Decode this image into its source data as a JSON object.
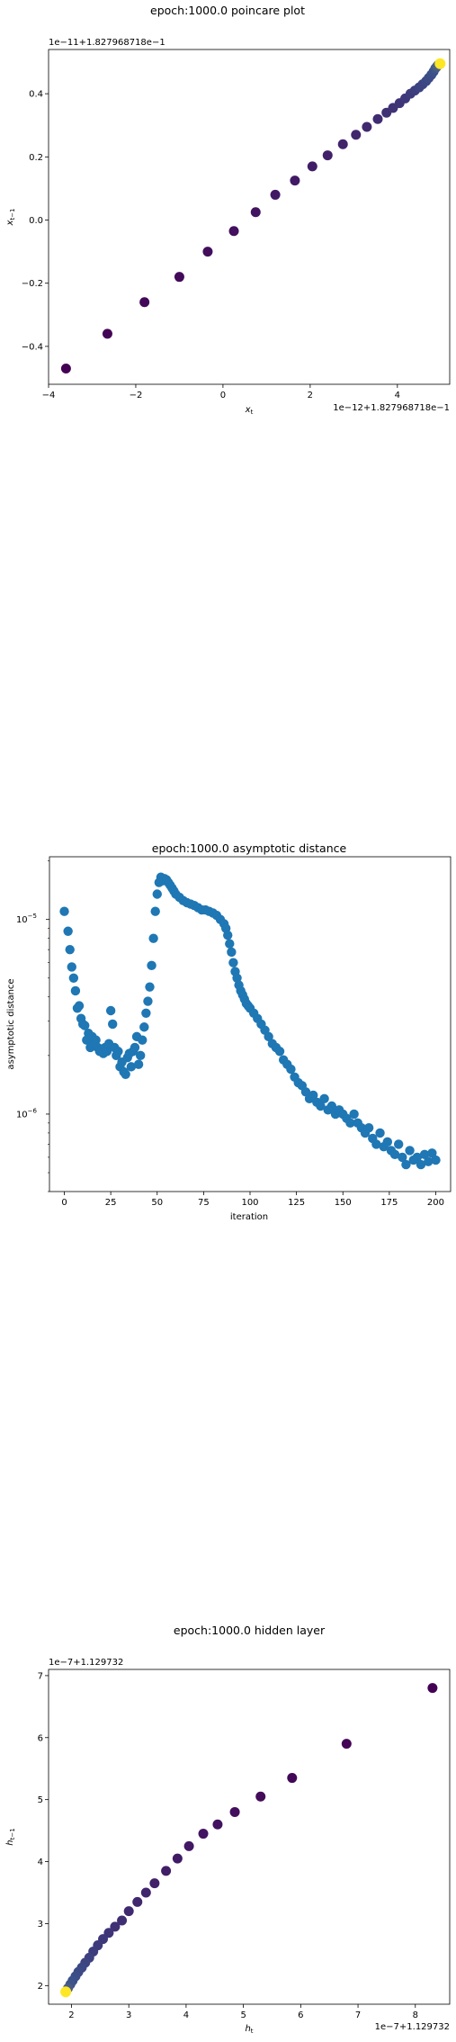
{
  "charts": {
    "poincare": {
      "title": "epoch:1000.0 poincare plot",
      "xlabel": "x_t",
      "ylabel": "x_{t-1}",
      "x_offset_label": "1e−12+1.827968718e−1",
      "y_offset_label": "1e−11+1.827968718e−1",
      "x_ticks": [
        {
          "v": -4,
          "label": "−4"
        },
        {
          "v": -2,
          "label": "−2"
        },
        {
          "v": 0,
          "label": "0"
        },
        {
          "v": 2,
          "label": "2"
        },
        {
          "v": 4,
          "label": "4"
        }
      ],
      "y_ticks": [
        {
          "v": -0.4,
          "label": "−0.4"
        },
        {
          "v": -0.2,
          "label": "−0.2"
        },
        {
          "v": 0.0,
          "label": "0.0"
        },
        {
          "v": 0.2,
          "label": "0.2"
        },
        {
          "v": 0.4,
          "label": "0.4"
        }
      ]
    },
    "asymptotic": {
      "title": "epoch:1000.0 asymptotic distance",
      "xlabel": "iteration",
      "ylabel": "asymptotic distance",
      "x_ticks": [
        {
          "v": 0,
          "label": "0"
        },
        {
          "v": 25,
          "label": "25"
        },
        {
          "v": 50,
          "label": "50"
        },
        {
          "v": 75,
          "label": "75"
        },
        {
          "v": 100,
          "label": "100"
        },
        {
          "v": 125,
          "label": "125"
        },
        {
          "v": 150,
          "label": "150"
        },
        {
          "v": 175,
          "label": "175"
        },
        {
          "v": 200,
          "label": "200"
        }
      ],
      "y_ticks": [
        {
          "v": 1e-06,
          "label": "10",
          "exp": "−6"
        },
        {
          "v": 1e-05,
          "label": "10",
          "exp": "−5"
        }
      ]
    },
    "hidden": {
      "title": "epoch:1000.0 hidden layer",
      "xlabel": "h_t",
      "ylabel": "h_{t-1}",
      "x_offset_label": "1e−7+1.129732",
      "y_offset_label": "1e−7+1.129732",
      "x_ticks": [
        {
          "v": 2,
          "label": "2"
        },
        {
          "v": 3,
          "label": "3"
        },
        {
          "v": 4,
          "label": "4"
        },
        {
          "v": 5,
          "label": "5"
        },
        {
          "v": 6,
          "label": "6"
        },
        {
          "v": 7,
          "label": "7"
        },
        {
          "v": 8,
          "label": "8"
        }
      ],
      "y_ticks": [
        {
          "v": 2,
          "label": "2"
        },
        {
          "v": 3,
          "label": "3"
        },
        {
          "v": 4,
          "label": "4"
        },
        {
          "v": 5,
          "label": "5"
        },
        {
          "v": 6,
          "label": "6"
        },
        {
          "v": 7,
          "label": "7"
        }
      ]
    }
  },
  "colors": {
    "viridis_start": "#440154",
    "viridis_mid": "#3b528b",
    "viridis_end": "#fde725",
    "series_blue": "#1f77b4"
  },
  "chart_data": [
    {
      "type": "scatter",
      "title": "epoch:1000.0 poincare plot",
      "xlabel": "x_t (×1e−12, offset 1.827968718e−1)",
      "ylabel": "x_{t-1} (×1e−11, offset 1.827968718e−1)",
      "xlim": [
        -4.0,
        5.2
      ],
      "ylim": [
        -0.52,
        0.54
      ],
      "color_by": "viridis by time index",
      "x": [
        -3.6,
        -2.65,
        -1.8,
        -1.0,
        -0.35,
        0.25,
        0.75,
        1.2,
        1.65,
        2.05,
        2.4,
        2.75,
        3.05,
        3.3,
        3.55,
        3.75,
        3.9,
        4.05,
        4.18,
        4.3,
        4.4,
        4.5,
        4.58,
        4.66,
        4.72,
        4.78,
        4.83,
        4.87,
        4.9,
        4.93
      ],
      "y": [
        -0.47,
        -0.36,
        -0.26,
        -0.18,
        -0.1,
        -0.035,
        0.025,
        0.08,
        0.125,
        0.17,
        0.205,
        0.24,
        0.27,
        0.295,
        0.32,
        0.34,
        0.355,
        0.37,
        0.385,
        0.4,
        0.41,
        0.42,
        0.43,
        0.44,
        0.45,
        0.46,
        0.47,
        0.48,
        0.485,
        0.49
      ]
    },
    {
      "type": "scatter",
      "title": "epoch:1000.0 asymptotic distance",
      "xlabel": "iteration",
      "ylabel": "asymptotic distance",
      "yscale": "log",
      "xlim": [
        -8,
        208
      ],
      "ylim": [
        4e-07,
        2.1e-05
      ],
      "x": [
        0,
        2,
        3,
        4,
        5,
        6,
        7,
        8,
        9,
        10,
        11,
        12,
        13,
        14,
        15,
        16,
        17,
        18,
        19,
        20,
        21,
        22,
        23,
        24,
        25,
        26,
        27,
        28,
        29,
        30,
        31,
        32,
        33,
        34,
        35,
        36,
        37,
        38,
        39,
        40,
        41,
        42,
        43,
        44,
        45,
        46,
        47,
        48,
        49,
        50,
        51,
        52,
        53,
        54,
        55,
        56,
        57,
        58,
        59,
        60,
        62,
        64,
        66,
        68,
        70,
        72,
        74,
        76,
        78,
        80,
        82,
        84,
        86,
        87,
        88,
        89,
        90,
        91,
        92,
        93,
        94,
        95,
        96,
        97,
        98,
        99,
        100,
        102,
        104,
        106,
        108,
        110,
        112,
        114,
        116,
        118,
        120,
        122,
        124,
        126,
        128,
        130,
        132,
        134,
        136,
        138,
        140,
        142,
        144,
        146,
        148,
        150,
        152,
        154,
        156,
        158,
        160,
        162,
        164,
        166,
        168,
        170,
        172,
        174,
        176,
        178,
        180,
        182,
        184,
        186,
        188,
        190,
        192,
        194,
        196,
        198,
        200
      ],
      "y": [
        1.1e-05,
        8.7e-06,
        7e-06,
        5.7e-06,
        5e-06,
        4.3e-06,
        3.5e-06,
        3.6e-06,
        3.1e-06,
        2.9e-06,
        2.85e-06,
        2.4e-06,
        2.6e-06,
        2.2e-06,
        2.5e-06,
        2.3e-06,
        2.4e-06,
        2.2e-06,
        2.1e-06,
        2.15e-06,
        2.05e-06,
        2.2e-06,
        2.1e-06,
        2.3e-06,
        3.4e-06,
        2.9e-06,
        2.2e-06,
        2e-06,
        2.1e-06,
        1.75e-06,
        1.85e-06,
        1.65e-06,
        1.6e-06,
        1.95e-06,
        2.05e-06,
        1.75e-06,
        2.1e-06,
        2.2e-06,
        2.5e-06,
        1.8e-06,
        2e-06,
        2.4e-06,
        2.8e-06,
        3.3e-06,
        3.8e-06,
        4.5e-06,
        5.8e-06,
        8e-06,
        1.1e-05,
        1.35e-05,
        1.55e-05,
        1.65e-05,
        1.58e-05,
        1.62e-05,
        1.6e-05,
        1.55e-05,
        1.5e-05,
        1.45e-05,
        1.4e-05,
        1.35e-05,
        1.3e-05,
        1.25e-05,
        1.22e-05,
        1.2e-05,
        1.18e-05,
        1.15e-05,
        1.12e-05,
        1.12e-05,
        1.1e-05,
        1.08e-05,
        1.05e-05,
        1e-05,
        9.5e-06,
        9e-06,
        8.3e-06,
        7.5e-06,
        6.8e-06,
        6e-06,
        5.4e-06,
        5e-06,
        4.6e-06,
        4.3e-06,
        4.1e-06,
        3.9e-06,
        3.7e-06,
        3.6e-06,
        3.5e-06,
        3.3e-06,
        3.1e-06,
        2.9e-06,
        2.7e-06,
        2.5e-06,
        2.3e-06,
        2.2e-06,
        2.1e-06,
        1.9e-06,
        1.8e-06,
        1.7e-06,
        1.55e-06,
        1.45e-06,
        1.4e-06,
        1.3e-06,
        1.2e-06,
        1.25e-06,
        1.15e-06,
        1.1e-06,
        1.2e-06,
        1.05e-06,
        1.1e-06,
        1e-06,
        1.05e-06,
        1e-06,
        9.5e-07,
        9e-07,
        1e-06,
        9e-07,
        8.5e-07,
        8e-07,
        8.5e-07,
        7.5e-07,
        7e-07,
        8e-07,
        6.8e-07,
        7.2e-07,
        6.5e-07,
        6.2e-07,
        7e-07,
        6e-07,
        5.5e-07,
        6.5e-07,
        5.8e-07,
        6e-07,
        5.5e-07,
        6.2e-07,
        5.7e-07,
        6.3e-07,
        5.8e-07
      ]
    },
    {
      "type": "scatter",
      "title": "epoch:1000.0 hidden layer",
      "xlabel": "h_t (×1e−7, offset 1.129732)",
      "ylabel": "h_{t-1} (×1e−7, offset 1.129732)",
      "xlim": [
        1.6,
        8.6
      ],
      "ylim": [
        1.7,
        7.1
      ],
      "color_by": "viridis by time index",
      "x": [
        8.3,
        6.8,
        5.85,
        5.3,
        4.85,
        4.55,
        4.3,
        4.05,
        3.85,
        3.65,
        3.45,
        3.3,
        3.15,
        3.0,
        2.88,
        2.76,
        2.65,
        2.55,
        2.46,
        2.38,
        2.31,
        2.24,
        2.18,
        2.12,
        2.07,
        2.02,
        1.98,
        1.94,
        1.9
      ],
      "y": [
        6.8,
        5.9,
        5.35,
        5.05,
        4.8,
        4.6,
        4.45,
        4.25,
        4.05,
        3.85,
        3.65,
        3.5,
        3.35,
        3.2,
        3.05,
        2.95,
        2.85,
        2.75,
        2.65,
        2.55,
        2.45,
        2.37,
        2.29,
        2.22,
        2.15,
        2.08,
        2.02,
        1.96,
        1.9
      ]
    }
  ]
}
